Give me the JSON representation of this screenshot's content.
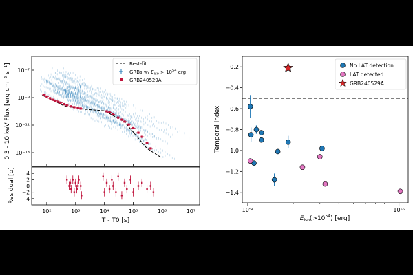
{
  "chart_data": [
    {
      "type": "scatter",
      "panel": "light-curve",
      "xscale": "log",
      "yscale": "log",
      "xlabel": "T - T0 [s]",
      "ylabel": "0.3 - 10 keV Flux [erg cm⁻² s⁻¹]",
      "xlim": [
        30,
        20000000
      ],
      "ylim": [
        1e-14,
        1e-06
      ],
      "x_ticks": [
        "10²",
        "10³",
        "10⁴",
        "10⁵",
        "10⁶",
        "10⁷"
      ],
      "y_ticks": [
        "10⁻¹³",
        "10⁻¹¹",
        "10⁻⁹",
        "10⁻⁷"
      ],
      "legend": {
        "placement": "top-right",
        "items": [
          "Best-fit",
          "GRBs w/ E_iso > 10^54 erg",
          "GRB240529A"
        ],
        "items_display": [
          "Best-fit",
          "GRBs w/ ",
          "GRB240529A"
        ]
      },
      "best_fit": [
        [
          70,
          1.5e-09
        ],
        [
          400,
          2.5e-10
        ],
        [
          1500,
          1.5e-10
        ],
        [
          10000,
          1.1e-10
        ],
        [
          50000,
          1.7e-11
        ],
        [
          300000,
          2e-13
        ],
        [
          1000000,
          4e-14
        ]
      ],
      "series": [
        {
          "name": "GRB240529A",
          "color": "#c0143c",
          "x": [
            80,
            100,
            130,
            160,
            200,
            250,
            300,
            400,
            500,
            700,
            900,
            1200,
            1500,
            12000,
            15000,
            20000,
            30000,
            40000,
            50000,
            70000,
            100000,
            150000,
            200000,
            300000,
            400000
          ],
          "y": [
            1.6e-09,
            1.2e-09,
            9e-10,
            7e-10,
            6e-10,
            5e-10,
            4.2e-10,
            3.3e-10,
            2.8e-10,
            2.3e-10,
            2e-10,
            1.8e-10,
            1.6e-10,
            1e-10,
            8.5e-11,
            6e-11,
            3.5e-11,
            2.5e-11,
            1.8e-11,
            1.1e-11,
            6e-12,
            2.8e-12,
            1.4e-12,
            5e-13,
            2e-13
          ]
        },
        {
          "name": "GRBs w/ E_iso > 10^54 erg",
          "color": "#1f77b4",
          "style": "band"
        }
      ]
    },
    {
      "type": "scatter",
      "panel": "residual",
      "xscale": "log",
      "ylabel": "Residual [σ]",
      "xlim": [
        30,
        20000000
      ],
      "ylim": [
        -6,
        6
      ],
      "y_ticks": [
        "4",
        "2",
        "0",
        "−2",
        "−4"
      ],
      "x": [
        500,
        600,
        650,
        700,
        800,
        900,
        1000,
        1100,
        1200,
        1300,
        1500,
        1600,
        9000,
        10000,
        12000,
        15000,
        18000,
        20000,
        25000,
        30000,
        40000,
        50000,
        60000,
        80000,
        100000,
        150000,
        200000,
        300000,
        400000,
        500000
      ],
      "y": [
        2,
        0,
        1,
        -1,
        2,
        -2,
        1,
        -1,
        0,
        2,
        0,
        -3,
        3,
        -2,
        1,
        -1,
        2,
        0,
        -2,
        3,
        -3,
        1,
        -1,
        2,
        -2,
        0,
        1,
        -1,
        0,
        -2
      ]
    },
    {
      "type": "scatter",
      "panel": "temporal-index",
      "xscale": "log",
      "xlabel": "E_iso(>10^54) [erg]",
      "xlabel_parts": {
        "base": "E",
        "sub": "iso",
        "rest": "(>10",
        "sup": "54",
        "tail": ") [erg]"
      },
      "ylabel": "Temporal index",
      "xlim": [
        9.2e+53,
        1.15e+55
      ],
      "ylim": [
        -1.5,
        -0.1
      ],
      "x_ticks": [
        "10⁵⁴",
        "10⁵⁵"
      ],
      "y_ticks": [
        "−0.2",
        "−0.4",
        "−0.6",
        "−0.8",
        "−1.0",
        "−1.2",
        "−1.4"
      ],
      "reference_line": -0.5,
      "legend": {
        "placement": "top-right",
        "items": [
          "No LAT detection",
          "LAT detected",
          "GRB240529A"
        ]
      },
      "series": [
        {
          "name": "No LAT detection",
          "color": "#1f77b4",
          "points": [
            [
              1.04e+54,
              -0.58,
              0.11
            ],
            [
              1.05e+54,
              -0.85,
              0.07
            ],
            [
              1.1e+54,
              -1.12,
              0
            ],
            [
              1.14e+54,
              -0.8,
              0.04
            ],
            [
              1.23e+54,
              -0.83,
              0
            ],
            [
              1.23e+54,
              -0.9,
              0
            ],
            [
              1.5e+54,
              -1.28,
              0.06
            ],
            [
              1.58e+54,
              -1.01,
              0
            ],
            [
              1.85e+54,
              -0.92,
              0.06
            ],
            [
              3.1e+54,
              -0.98,
              0
            ]
          ]
        },
        {
          "name": "LAT detected",
          "color": "#e377c2",
          "points": [
            [
              1.04e+54,
              -1.1
            ],
            [
              2.3e+54,
              -1.16
            ],
            [
              3e+54,
              -1.06
            ],
            [
              3.25e+54,
              -1.32
            ],
            [
              1.02e+55,
              -1.39
            ]
          ]
        },
        {
          "name": "GRB240529A",
          "color": "#d62728",
          "marker": "star",
          "points": [
            [
              1.85e+54,
              -0.21
            ]
          ]
        }
      ]
    }
  ]
}
